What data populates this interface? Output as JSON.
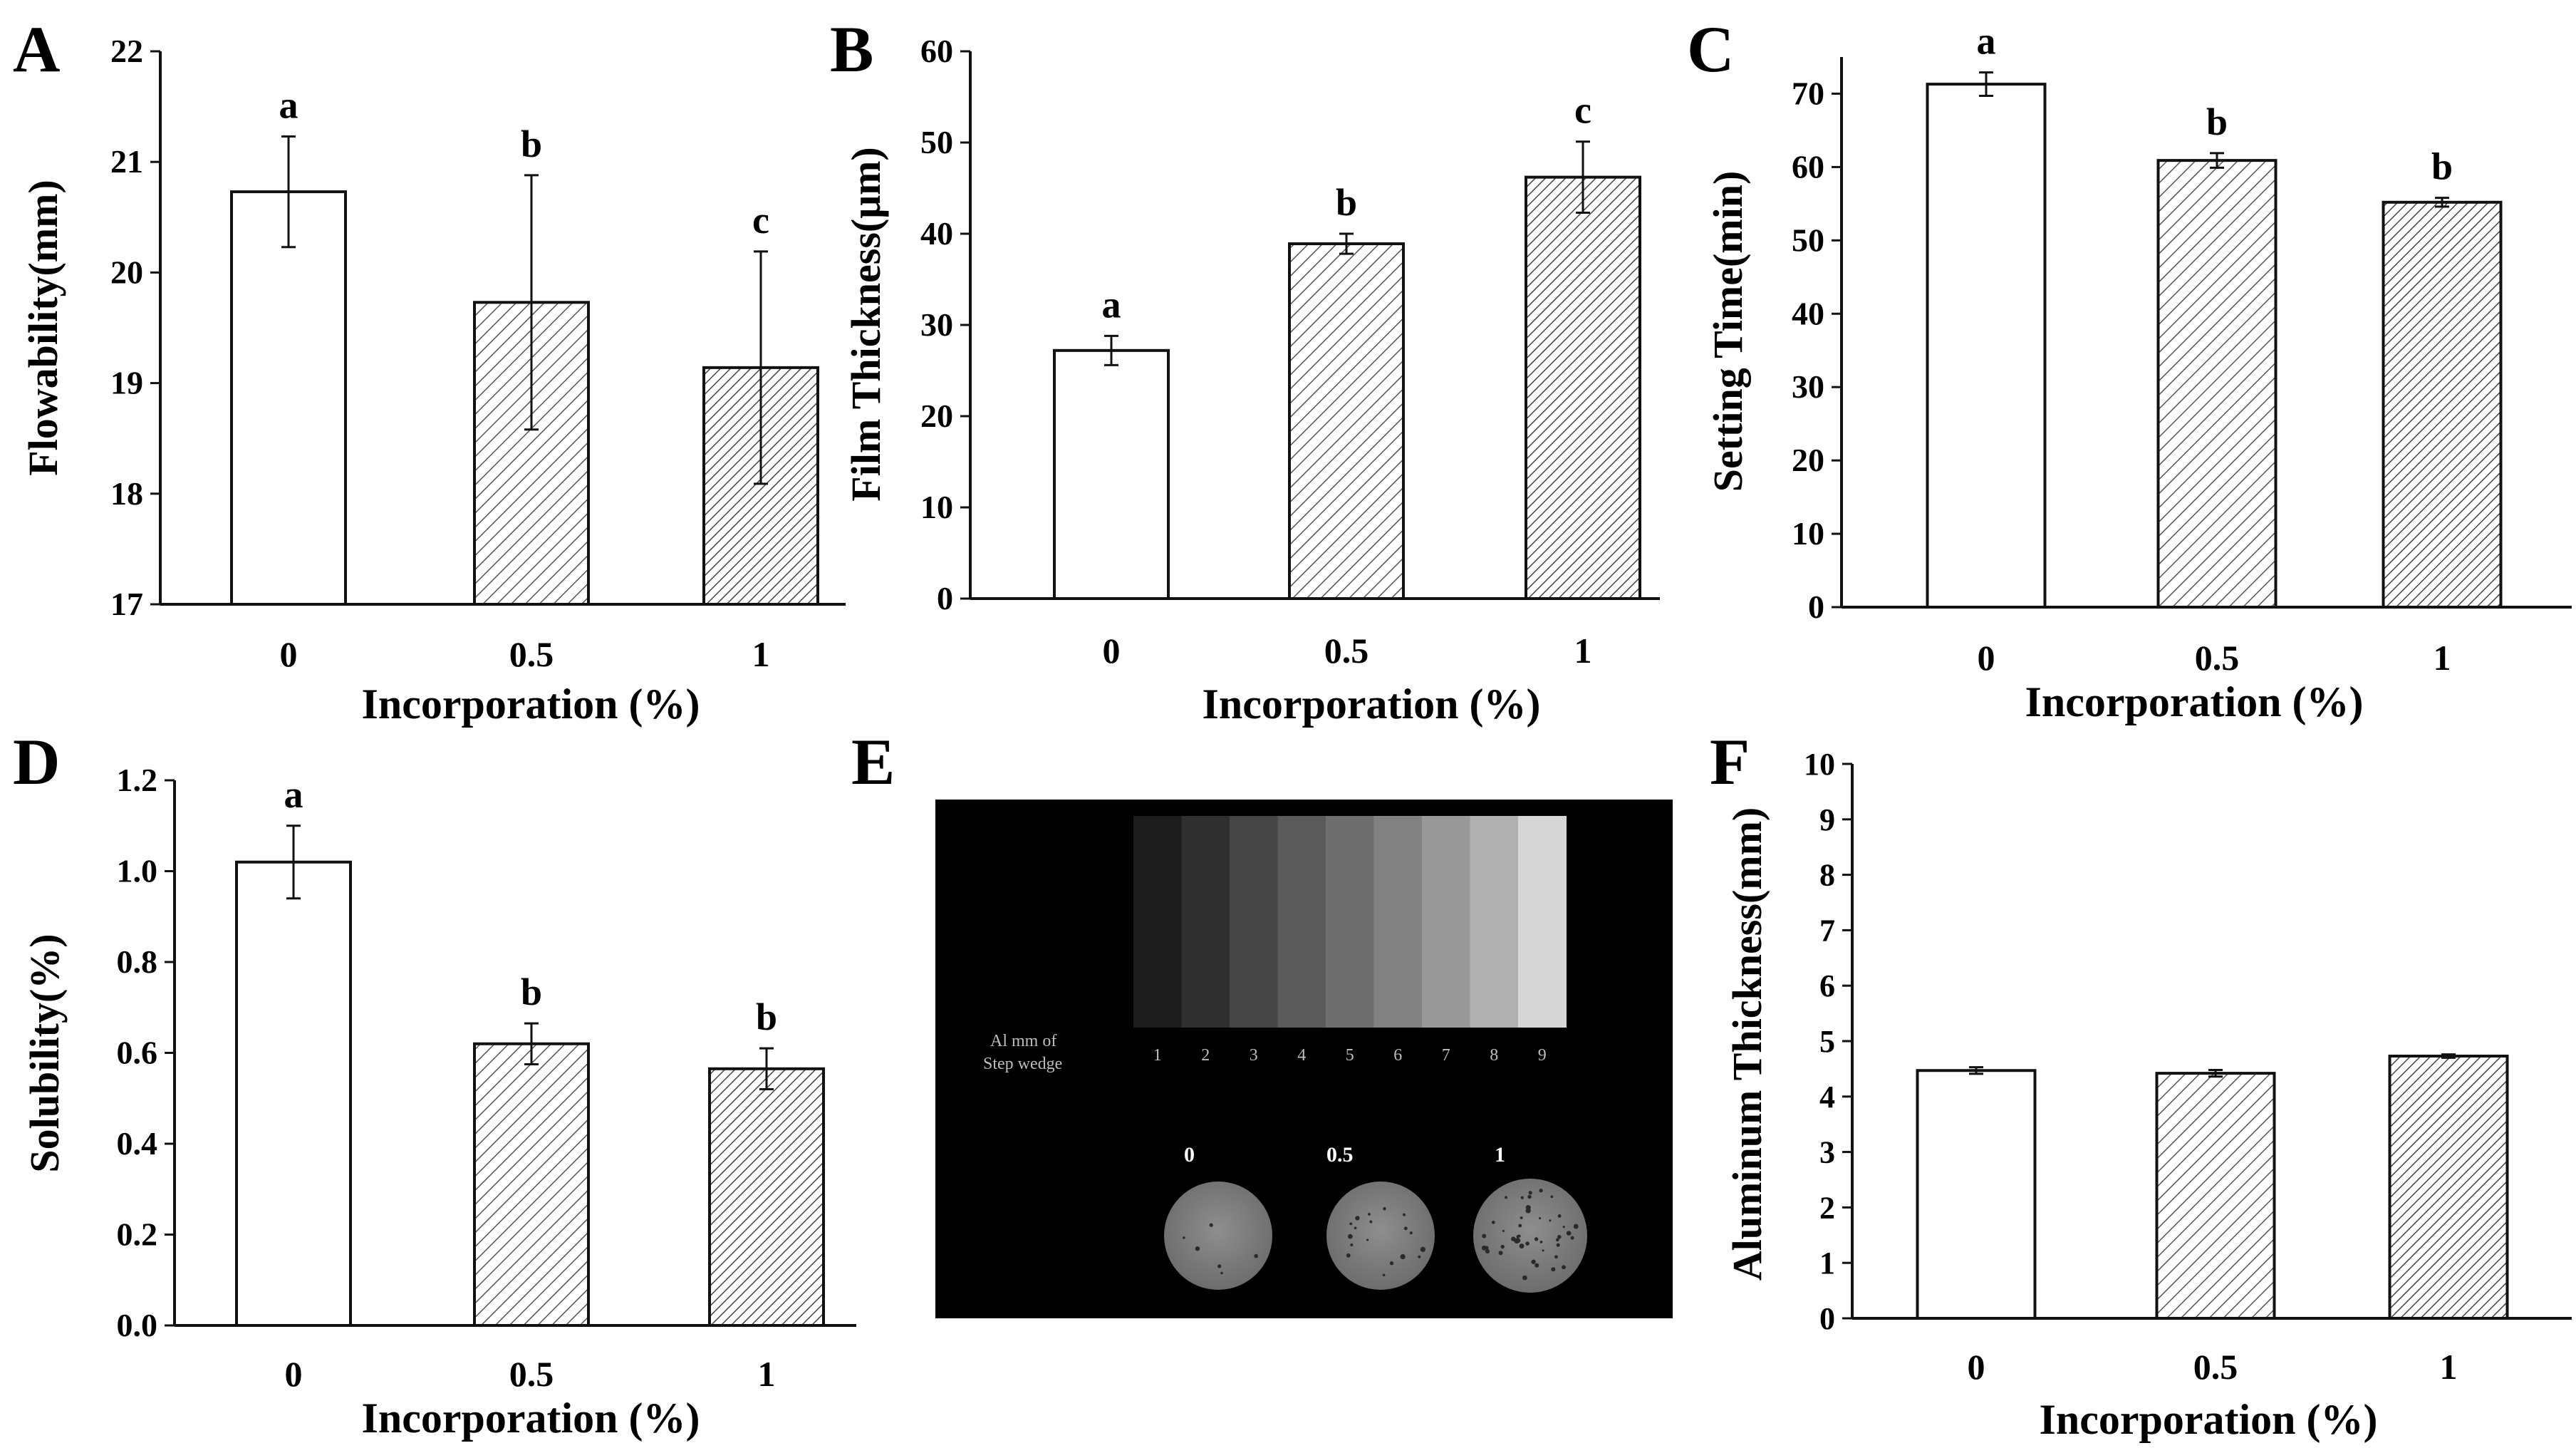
{
  "colors": {
    "ink": "#111111",
    "bar_fill": "#ffffff",
    "hatch": "#555555",
    "xray_bg": "#000000"
  },
  "chart_data": [
    {
      "id": "A",
      "type": "bar",
      "panel_letter": "A",
      "xlabel": "Incorporation (%)",
      "ylabel": "Flowability(mm)",
      "categories": [
        "0",
        "0.5",
        "1"
      ],
      "values": [
        20.73,
        19.73,
        19.14
      ],
      "errors": [
        0.5,
        1.15,
        1.05
      ],
      "letters": [
        "a",
        "b",
        "c"
      ],
      "ylim": [
        17,
        22
      ],
      "yticks": [
        "17",
        "18",
        "19",
        "20",
        "21",
        "22"
      ],
      "fills": [
        "plain",
        "hatch",
        "hatch-dense"
      ]
    },
    {
      "id": "B",
      "type": "bar",
      "panel_letter": "B",
      "xlabel": "Incorporation (%)",
      "ylabel": "Film Thickness(μm)",
      "categories": [
        "0",
        "0.5",
        "1"
      ],
      "values": [
        27.2,
        38.9,
        46.2
      ],
      "errors": [
        1.6,
        1.1,
        3.9
      ],
      "letters": [
        "a",
        "b",
        "c"
      ],
      "ylim": [
        0,
        60
      ],
      "yticks": [
        "0",
        "10",
        "20",
        "30",
        "40",
        "50",
        "60"
      ],
      "fills": [
        "plain",
        "hatch",
        "hatch-dense"
      ]
    },
    {
      "id": "C",
      "type": "bar",
      "panel_letter": "C",
      "xlabel": "Incorporation (%)",
      "ylabel": "Setting Time(min)",
      "categories": [
        "0",
        "0.5",
        "1"
      ],
      "values": [
        71.3,
        60.9,
        55.2
      ],
      "errors": [
        1.6,
        1.0,
        0.6
      ],
      "letters": [
        "a",
        "b",
        "b"
      ],
      "ylim": [
        0,
        75
      ],
      "yticks": [
        "0",
        "10",
        "20",
        "30",
        "40",
        "50",
        "60",
        "70"
      ],
      "fills": [
        "plain",
        "hatch",
        "hatch-dense"
      ]
    },
    {
      "id": "D",
      "type": "bar",
      "panel_letter": "D",
      "xlabel": "Incorporation (%)",
      "ylabel": "Solubility(%)",
      "categories": [
        "0",
        "0.5",
        "1"
      ],
      "values": [
        1.02,
        0.62,
        0.565
      ],
      "errors": [
        0.08,
        0.045,
        0.045
      ],
      "letters": [
        "a",
        "b",
        "b"
      ],
      "ylim": [
        0,
        1.2
      ],
      "yticks": [
        "0.0",
        "0.2",
        "0.4",
        "0.6",
        "0.8",
        "1.0",
        "1.2"
      ],
      "fills": [
        "plain",
        "hatch",
        "hatch-dense"
      ]
    },
    {
      "id": "F",
      "type": "bar",
      "panel_letter": "F",
      "xlabel": "Incorporation (%)",
      "ylabel": "Aluminum Thickness(mm)",
      "categories": [
        "0",
        "0.5",
        "1"
      ],
      "values": [
        4.47,
        4.42,
        4.73
      ],
      "errors": [
        0.06,
        0.06,
        0.03
      ],
      "letters": [
        "",
        "",
        ""
      ],
      "ylim": [
        0,
        10
      ],
      "yticks": [
        "0",
        "1",
        "2",
        "3",
        "4",
        "5",
        "6",
        "7",
        "8",
        "9",
        "10"
      ],
      "fills": [
        "plain",
        "hatch",
        "hatch-dense"
      ]
    }
  ],
  "panel_e": {
    "panel_letter": "E",
    "wedge_numbers": [
      "1",
      "2",
      "3",
      "4",
      "5",
      "6",
      "7",
      "8",
      "9"
    ],
    "wedge_label_line1": "Al mm of",
    "wedge_label_line2": "Step wedge",
    "sample_labels": [
      "0",
      "0.5",
      "1"
    ]
  }
}
